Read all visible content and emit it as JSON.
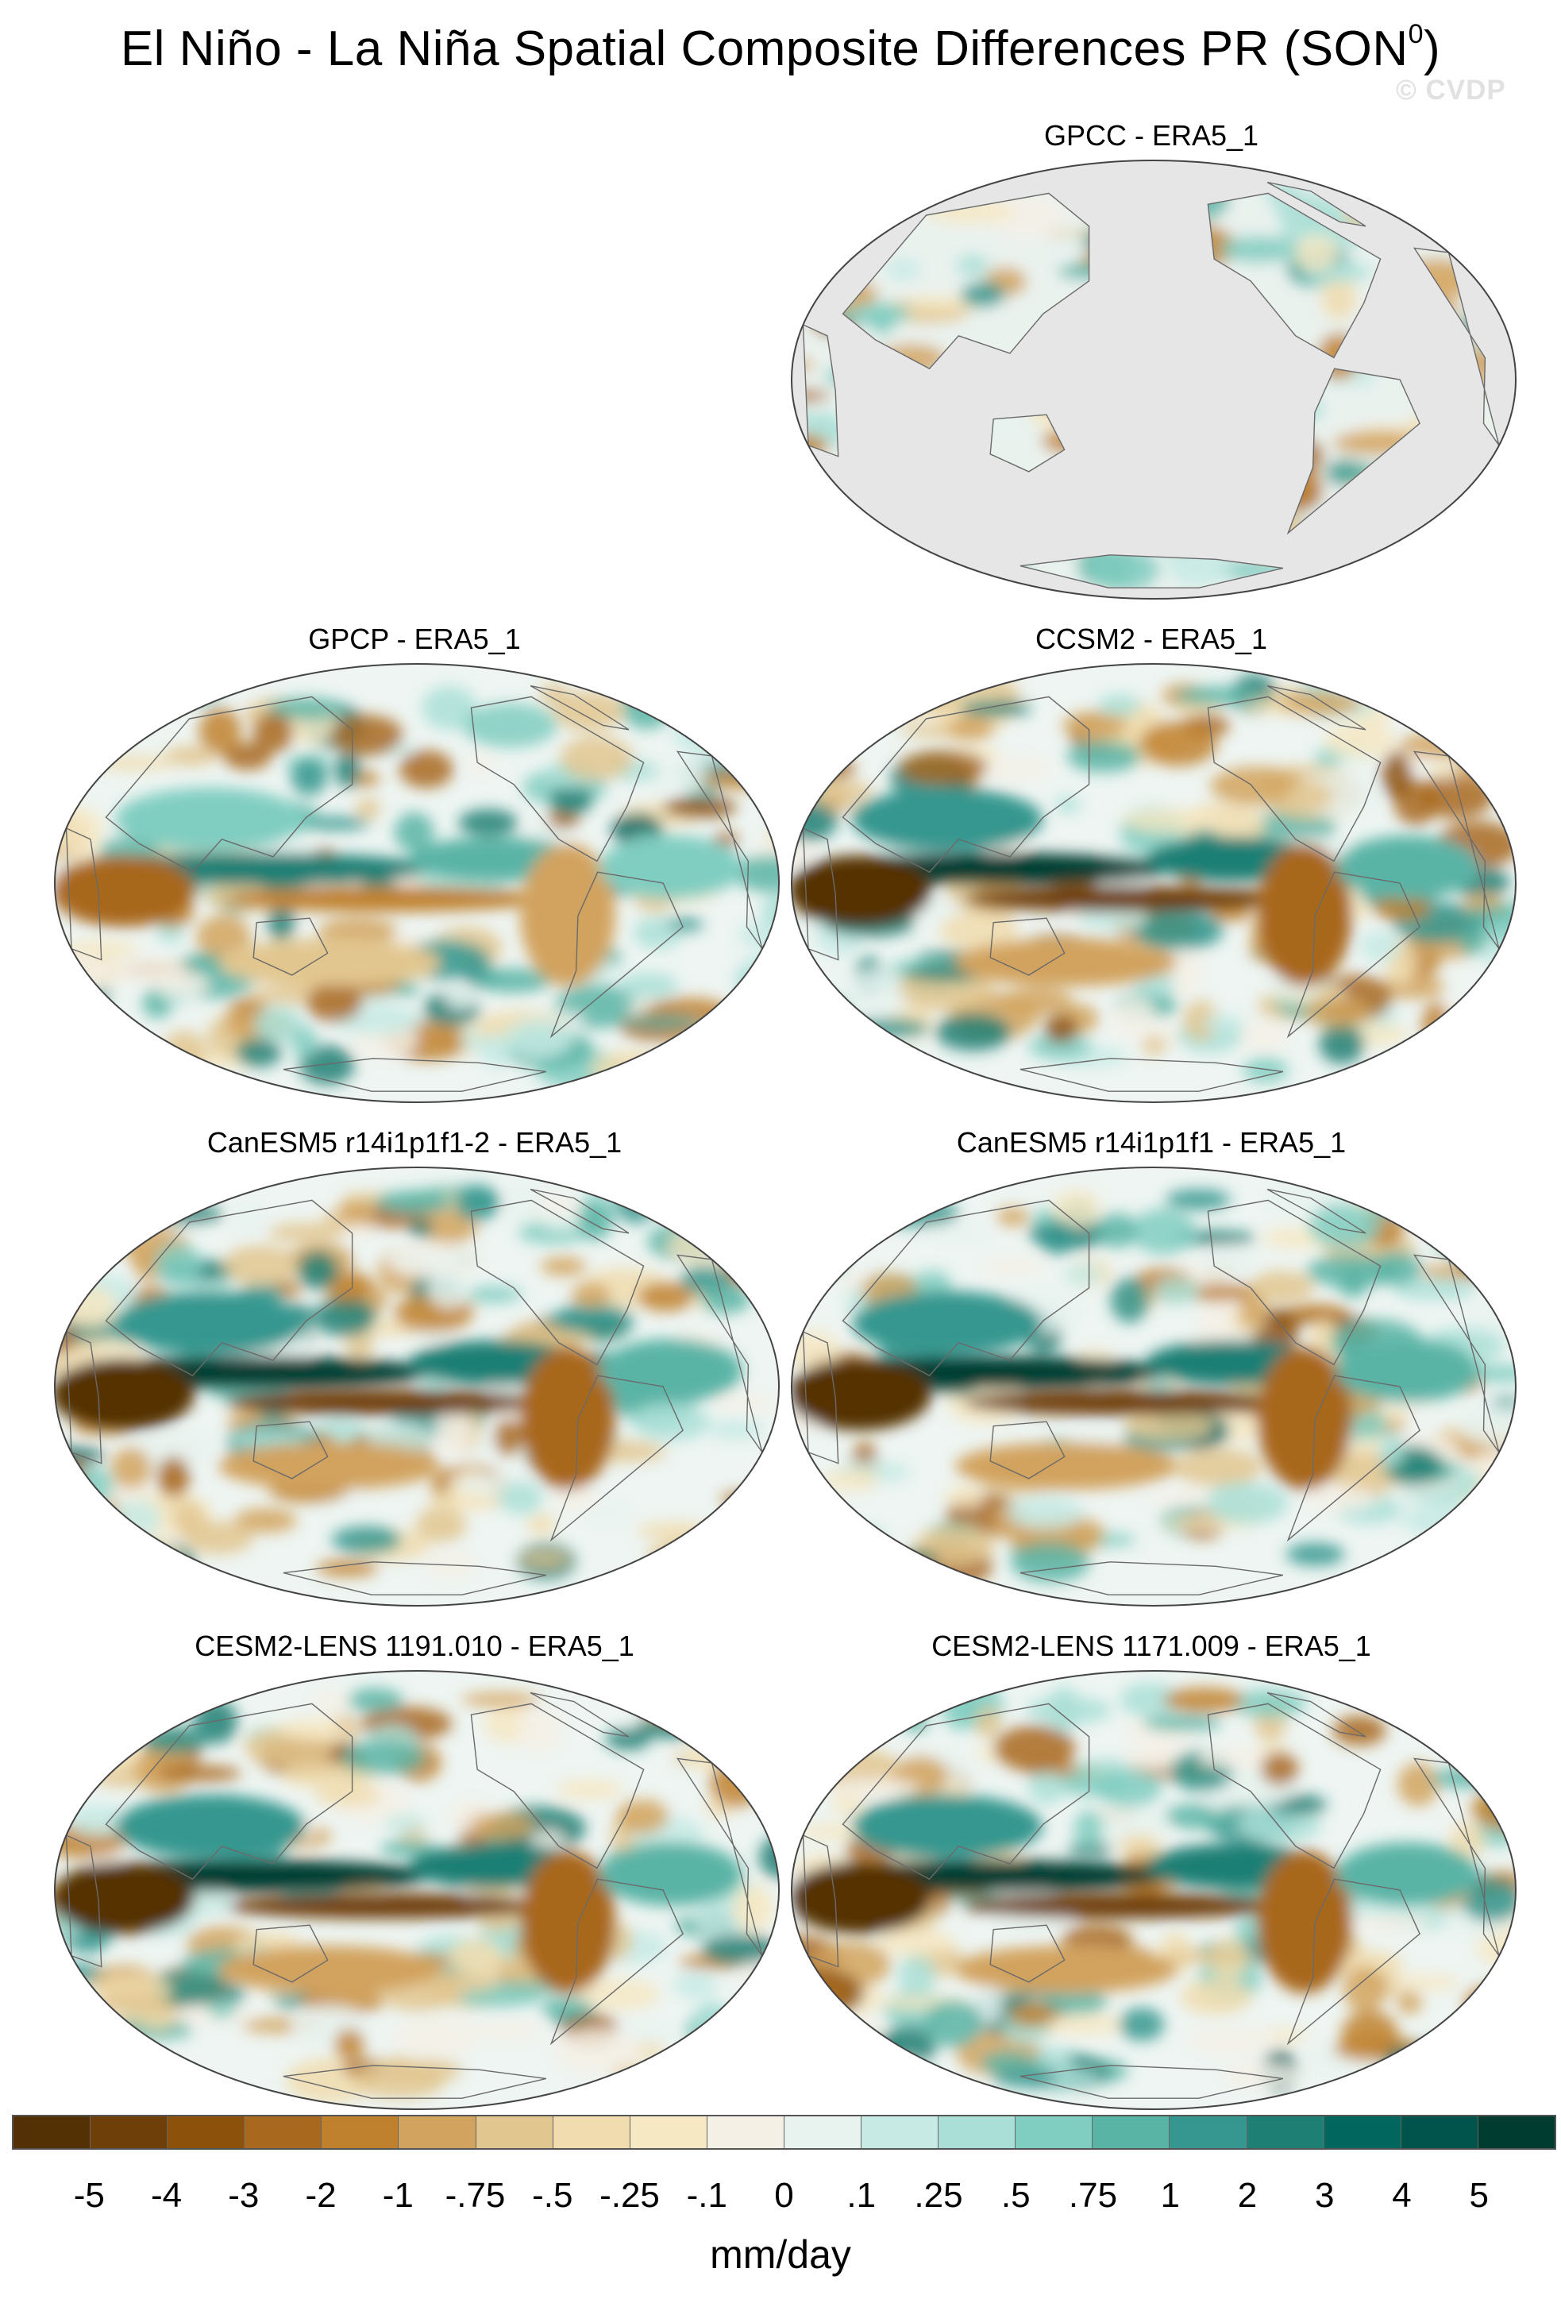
{
  "figure": {
    "title_main": "El Niño - La Niña Spatial Composite Differences PR (SON",
    "title_sup": "0",
    "title_end": ")",
    "watermark": "© CVDP",
    "units": "mm/day"
  },
  "panels": [
    {
      "title": "GPCC - ERA5_1",
      "land_only": true
    },
    {
      "title": "GPCP - ERA5_1",
      "land_only": false
    },
    {
      "title": "CCSM2 - ERA5_1",
      "land_only": false
    },
    {
      "title": "CanESM5 r14i1p1f1-2 - ERA5_1",
      "land_only": false
    },
    {
      "title": "CanESM5 r14i1p1f1 - ERA5_1",
      "land_only": false
    },
    {
      "title": "CESM2-LENS 1191.010 - ERA5_1",
      "land_only": false
    },
    {
      "title": "CESM2-LENS 1171.009 - ERA5_1",
      "land_only": false
    }
  ],
  "colorbar": {
    "labels": [
      "-5",
      "-4",
      "-3",
      "-2",
      "-1",
      "-.75",
      "-.5",
      "-.25",
      "-.1",
      "0",
      ".1",
      ".25",
      ".5",
      ".75",
      "1",
      "2",
      "3",
      "4",
      "5"
    ],
    "colors": [
      "#543005",
      "#6f3f0a",
      "#8c510a",
      "#a8681e",
      "#bf812d",
      "#d2a35e",
      "#e2c68f",
      "#f0dcae",
      "#f6e8c3",
      "#f5f0e6",
      "#e8f2ef",
      "#c7eae5",
      "#aadfd7",
      "#80cdc1",
      "#5ab4a6",
      "#35978f",
      "#1e7f74",
      "#01665e",
      "#01544c",
      "#003c30"
    ],
    "no_data_color": "#e6e6e6"
  }
}
